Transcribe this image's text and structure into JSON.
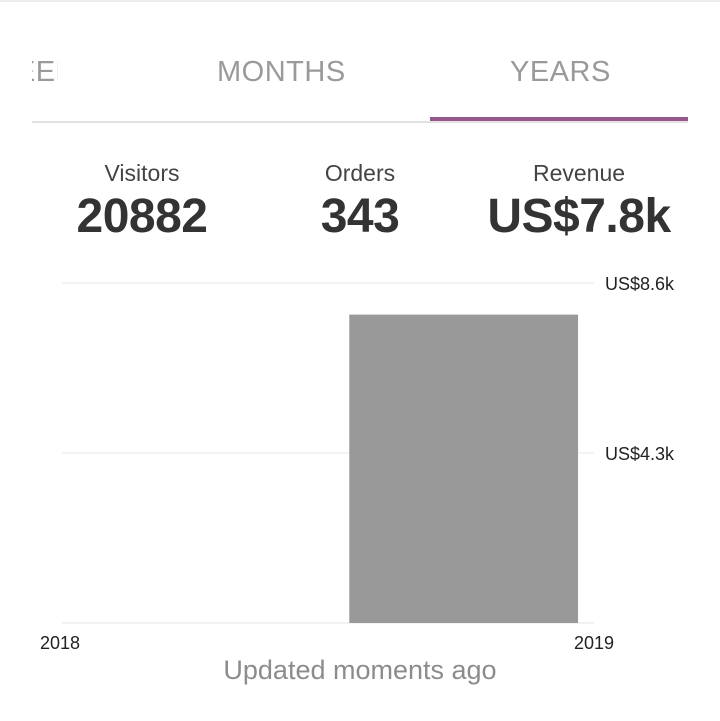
{
  "tabs": [
    {
      "label": "WEEKS"
    },
    {
      "label": "MONTHS"
    },
    {
      "label": "YEARS",
      "selected": true
    }
  ],
  "accent_color": "#96588a",
  "stats": {
    "visitors": {
      "label": "Visitors",
      "value": "20882"
    },
    "orders": {
      "label": "Orders",
      "value": "343"
    },
    "revenue": {
      "label": "Revenue",
      "value": "US$7.8k"
    }
  },
  "chart_data": {
    "type": "bar",
    "x_tick_labels": [
      "2018",
      "2019"
    ],
    "y_tick_labels": [
      "US$8.6k",
      "US$4.3k"
    ],
    "y_ticks": [
      8600,
      4300,
      0
    ],
    "ylim": [
      0,
      8600
    ],
    "categories": [
      "2018",
      "2019"
    ],
    "values": [
      0,
      7800
    ],
    "bar_color": "#999999",
    "grid": true
  },
  "footer": {
    "updated_text": "Updated moments ago"
  }
}
